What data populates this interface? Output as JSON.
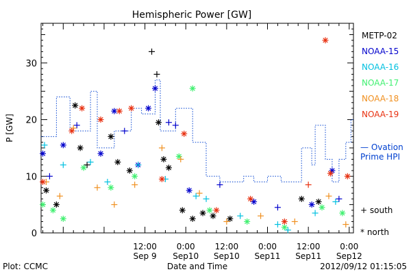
{
  "chart_data": {
    "type": "scatter",
    "title": "Hemispheric Power [GW]",
    "ylabel": "P [GW]",
    "xlabel": "Date and Time",
    "ylim": [
      0,
      37
    ],
    "xlim": [
      "2012-09-08 05:30",
      "2012-09-12 01:15"
    ],
    "y_ticks": [
      0,
      10,
      20,
      30
    ],
    "x_ticks": [
      {
        "t": "2012-09-08 12:00",
        "time": "",
        "date": ""
      },
      {
        "t": "2012-09-09 00:00",
        "time": "",
        "date": ""
      },
      {
        "t": "2012-09-09 12:00",
        "time": "12:00",
        "date": "Sep 9"
      },
      {
        "t": "2012-09-10 00:00",
        "time": "0:00",
        "date": "Sep10"
      },
      {
        "t": "2012-09-10 12:00",
        "time": "12:00",
        "date": "Sep10"
      },
      {
        "t": "2012-09-11 00:00",
        "time": "0:00",
        "date": "Sep11"
      },
      {
        "t": "2012-09-11 12:00",
        "time": "12:00",
        "date": "Sep11"
      },
      {
        "t": "2012-09-12 00:00",
        "time": "0:00",
        "date": "Sep12"
      }
    ],
    "grid": false,
    "legend_position": "right",
    "series": [
      {
        "name": "METP-02",
        "color": "#000000",
        "points": [
          {
            "t": "2012-09-08 07:00",
            "y": 7.5,
            "m": "north"
          },
          {
            "t": "2012-09-08 10:00",
            "y": 5.0,
            "m": "north"
          },
          {
            "t": "2012-09-08 15:30",
            "y": 22.5,
            "m": "north"
          },
          {
            "t": "2012-09-08 17:00",
            "y": 15.0,
            "m": "north"
          },
          {
            "t": "2012-09-08 19:00",
            "y": 12.0,
            "m": "south"
          },
          {
            "t": "2012-09-09 02:00",
            "y": 17.0,
            "m": "north"
          },
          {
            "t": "2012-09-09 04:00",
            "y": 12.5,
            "m": "north"
          },
          {
            "t": "2012-09-09 07:30",
            "y": 11.0,
            "m": "north"
          },
          {
            "t": "2012-09-09 14:00",
            "y": 32.0,
            "m": "south"
          },
          {
            "t": "2012-09-09 15:30",
            "y": 28.0,
            "m": "south"
          },
          {
            "t": "2012-09-09 16:00",
            "y": 19.5,
            "m": "north"
          },
          {
            "t": "2012-09-09 17:30",
            "y": 13.0,
            "m": "north"
          },
          {
            "t": "2012-09-09 19:00",
            "y": 11.5,
            "m": "north"
          },
          {
            "t": "2012-09-09 23:00",
            "y": 4.0,
            "m": "north"
          },
          {
            "t": "2012-09-10 02:00",
            "y": 2.5,
            "m": "north"
          },
          {
            "t": "2012-09-10 05:00",
            "y": 3.5,
            "m": "north"
          },
          {
            "t": "2012-09-10 08:00",
            "y": 3.0,
            "m": "north"
          },
          {
            "t": "2012-09-10 13:00",
            "y": 2.5,
            "m": "north"
          },
          {
            "t": "2012-09-11 10:00",
            "y": 6.0,
            "m": "north"
          },
          {
            "t": "2012-09-11 15:00",
            "y": 5.5,
            "m": "north"
          }
        ]
      },
      {
        "name": "NOAA-15",
        "color": "#0000cc",
        "points": [
          {
            "t": "2012-09-08 06:00",
            "y": 14.0,
            "m": "north"
          },
          {
            "t": "2012-09-08 08:00",
            "y": 10.0,
            "m": "south"
          },
          {
            "t": "2012-09-08 12:00",
            "y": 15.5,
            "m": "north"
          },
          {
            "t": "2012-09-08 16:00",
            "y": 19.0,
            "m": "south"
          },
          {
            "t": "2012-09-08 23:00",
            "y": 14.0,
            "m": "north"
          },
          {
            "t": "2012-09-09 03:00",
            "y": 21.5,
            "m": "north"
          },
          {
            "t": "2012-09-09 06:00",
            "y": 18.0,
            "m": "south"
          },
          {
            "t": "2012-09-09 13:00",
            "y": 22.0,
            "m": "north"
          },
          {
            "t": "2012-09-09 15:00",
            "y": 25.5,
            "m": "north"
          },
          {
            "t": "2012-09-09 19:00",
            "y": 19.5,
            "m": "south"
          },
          {
            "t": "2012-09-09 21:00",
            "y": 19.0,
            "m": "south"
          },
          {
            "t": "2012-09-09 10:00",
            "y": 12.0,
            "m": "north"
          },
          {
            "t": "2012-09-10 01:00",
            "y": 7.5,
            "m": "north"
          },
          {
            "t": "2012-09-10 10:00",
            "y": 8.5,
            "m": "south"
          },
          {
            "t": "2012-09-10 20:00",
            "y": 5.5,
            "m": "north"
          },
          {
            "t": "2012-09-11 03:00",
            "y": 4.5,
            "m": "south"
          },
          {
            "t": "2012-09-11 13:00",
            "y": 5.0,
            "m": "north"
          },
          {
            "t": "2012-09-11 19:00",
            "y": 11.0,
            "m": "north"
          },
          {
            "t": "2012-09-11 21:00",
            "y": 6.0,
            "m": "south"
          }
        ]
      },
      {
        "name": "NOAA-16",
        "color": "#00c0e0",
        "points": [
          {
            "t": "2012-09-08 06:30",
            "y": 15.5,
            "m": "south"
          },
          {
            "t": "2012-09-08 12:00",
            "y": 12.0,
            "m": "south"
          },
          {
            "t": "2012-09-08 20:00",
            "y": 12.5,
            "m": "south"
          },
          {
            "t": "2012-09-09 01:00",
            "y": 9.0,
            "m": "south"
          },
          {
            "t": "2012-09-09 10:00",
            "y": 12.0,
            "m": "south"
          },
          {
            "t": "2012-09-09 18:00",
            "y": 9.5,
            "m": "south"
          },
          {
            "t": "2012-09-10 03:00",
            "y": 6.5,
            "m": "south"
          },
          {
            "t": "2012-09-10 06:00",
            "y": 6.0,
            "m": "south"
          },
          {
            "t": "2012-09-10 16:00",
            "y": 3.0,
            "m": "south"
          },
          {
            "t": "2012-09-11 03:00",
            "y": 1.5,
            "m": "south"
          },
          {
            "t": "2012-09-11 06:00",
            "y": 0.5,
            "m": "south"
          },
          {
            "t": "2012-09-11 14:00",
            "y": 3.5,
            "m": "south"
          },
          {
            "t": "2012-09-11 20:00",
            "y": 5.5,
            "m": "south"
          }
        ]
      },
      {
        "name": "NOAA-17",
        "color": "#40f070",
        "points": [
          {
            "t": "2012-09-08 06:00",
            "y": 5.0,
            "m": "north"
          },
          {
            "t": "2012-09-08 09:00",
            "y": 4.0,
            "m": "north"
          },
          {
            "t": "2012-09-08 12:00",
            "y": 2.5,
            "m": "north"
          },
          {
            "t": "2012-09-08 18:00",
            "y": 11.5,
            "m": "north"
          },
          {
            "t": "2012-09-09 02:00",
            "y": 8.0,
            "m": "north"
          },
          {
            "t": "2012-09-09 09:00",
            "y": 10.0,
            "m": "north"
          },
          {
            "t": "2012-09-10 02:00",
            "y": 25.5,
            "m": "north"
          },
          {
            "t": "2012-09-09 22:00",
            "y": 13.5,
            "m": "north"
          },
          {
            "t": "2012-09-10 07:00",
            "y": 4.0,
            "m": "north"
          },
          {
            "t": "2012-09-10 18:00",
            "y": 2.0,
            "m": "north"
          },
          {
            "t": "2012-09-11 05:00",
            "y": 1.0,
            "m": "north"
          },
          {
            "t": "2012-09-11 16:00",
            "y": 4.5,
            "m": "north"
          },
          {
            "t": "2012-09-11 22:00",
            "y": 3.5,
            "m": "north"
          }
        ]
      },
      {
        "name": "NOAA-18",
        "color": "#f09020",
        "points": [
          {
            "t": "2012-09-08 07:00",
            "y": 9.0,
            "m": "south"
          },
          {
            "t": "2012-09-08 11:00",
            "y": 6.5,
            "m": "south"
          },
          {
            "t": "2012-09-08 15:00",
            "y": 18.5,
            "m": "south"
          },
          {
            "t": "2012-09-08 22:00",
            "y": 8.0,
            "m": "south"
          },
          {
            "t": "2012-09-09 03:00",
            "y": 5.0,
            "m": "south"
          },
          {
            "t": "2012-09-09 09:00",
            "y": 8.5,
            "m": "south"
          },
          {
            "t": "2012-09-09 17:00",
            "y": 15.0,
            "m": "south"
          },
          {
            "t": "2012-09-09 22:30",
            "y": 13.0,
            "m": "south"
          },
          {
            "t": "2012-09-10 04:00",
            "y": 7.0,
            "m": "south"
          },
          {
            "t": "2012-09-10 12:00",
            "y": 2.0,
            "m": "south"
          },
          {
            "t": "2012-09-10 22:00",
            "y": 3.0,
            "m": "south"
          },
          {
            "t": "2012-09-11 08:00",
            "y": 2.0,
            "m": "south"
          },
          {
            "t": "2012-09-11 18:00",
            "y": 6.5,
            "m": "south"
          },
          {
            "t": "2012-09-11 23:00",
            "y": 1.5,
            "m": "south"
          }
        ]
      },
      {
        "name": "NOAA-19",
        "color": "#e83010",
        "points": [
          {
            "t": "2012-09-08 06:00",
            "y": 9.0,
            "m": "north"
          },
          {
            "t": "2012-09-08 14:30",
            "y": 18.0,
            "m": "north"
          },
          {
            "t": "2012-09-08 17:30",
            "y": 22.0,
            "m": "north"
          },
          {
            "t": "2012-09-08 23:00",
            "y": 20.0,
            "m": "north"
          },
          {
            "t": "2012-09-09 04:30",
            "y": 21.5,
            "m": "north"
          },
          {
            "t": "2012-09-09 08:00",
            "y": 22.0,
            "m": "north"
          },
          {
            "t": "2012-09-09 23:30",
            "y": 17.5,
            "m": "north"
          },
          {
            "t": "2012-09-09 17:00",
            "y": 9.5,
            "m": "north"
          },
          {
            "t": "2012-09-10 09:00",
            "y": 4.0,
            "m": "north"
          },
          {
            "t": "2012-09-10 19:00",
            "y": 6.0,
            "m": "north"
          },
          {
            "t": "2012-09-11 05:00",
            "y": 2.0,
            "m": "north"
          },
          {
            "t": "2012-09-11 12:00",
            "y": 8.5,
            "m": "south"
          },
          {
            "t": "2012-09-11 17:00",
            "y": 34.0,
            "m": "north"
          },
          {
            "t": "2012-09-11 18:30",
            "y": 10.5,
            "m": "north"
          },
          {
            "t": "2012-09-11 23:30",
            "y": 10.0,
            "m": "north"
          }
        ]
      }
    ],
    "ovation": {
      "name": "Ovation Prime HPI",
      "color": "#0040d0",
      "points": [
        {
          "t": "2012-09-08 05:30",
          "y": 17.0
        },
        {
          "t": "2012-09-08 10:00",
          "y": 24.0
        },
        {
          "t": "2012-09-08 14:00",
          "y": 18.0
        },
        {
          "t": "2012-09-08 20:00",
          "y": 25.0
        },
        {
          "t": "2012-09-08 22:00",
          "y": 15.0
        },
        {
          "t": "2012-09-09 03:00",
          "y": 18.0
        },
        {
          "t": "2012-09-09 08:00",
          "y": 22.0
        },
        {
          "t": "2012-09-09 11:00",
          "y": 21.0
        },
        {
          "t": "2012-09-09 15:00",
          "y": 27.0
        },
        {
          "t": "2012-09-09 16:30",
          "y": 18.0
        },
        {
          "t": "2012-09-09 21:00",
          "y": 22.0
        },
        {
          "t": "2012-09-10 02:00",
          "y": 16.0
        },
        {
          "t": "2012-09-10 06:00",
          "y": 10.0
        },
        {
          "t": "2012-09-10 10:00",
          "y": 9.0
        },
        {
          "t": "2012-09-10 17:00",
          "y": 10.0
        },
        {
          "t": "2012-09-10 20:00",
          "y": 9.0
        },
        {
          "t": "2012-09-11 00:00",
          "y": 10.0
        },
        {
          "t": "2012-09-11 04:00",
          "y": 9.0
        },
        {
          "t": "2012-09-11 07:00",
          "y": 9.0
        },
        {
          "t": "2012-09-11 10:00",
          "y": 15.0
        },
        {
          "t": "2012-09-11 13:00",
          "y": 12.0
        },
        {
          "t": "2012-09-11 14:00",
          "y": 19.0
        },
        {
          "t": "2012-09-11 17:00",
          "y": 13.0
        },
        {
          "t": "2012-09-11 19:00",
          "y": 9.0
        },
        {
          "t": "2012-09-11 21:00",
          "y": 13.0
        },
        {
          "t": "2012-09-11 23:00",
          "y": 16.0
        },
        {
          "t": "2012-09-12 00:30",
          "y": 20.0
        },
        {
          "t": "2012-09-12 01:15",
          "y": 20.0
        }
      ]
    }
  },
  "legend": {
    "items": [
      "METP-02",
      "NOAA-15",
      "NOAA-16",
      "NOAA-17",
      "NOAA-18",
      "NOAA-19"
    ],
    "ovation_line1": "— Ovation",
    "ovation_line2": "Prime HPI",
    "south_label": "+ south",
    "north_label": "* north"
  },
  "footer": {
    "plot_credit": "Plot: CCMC",
    "timestamp": "2012/09/12 01:15:05"
  }
}
